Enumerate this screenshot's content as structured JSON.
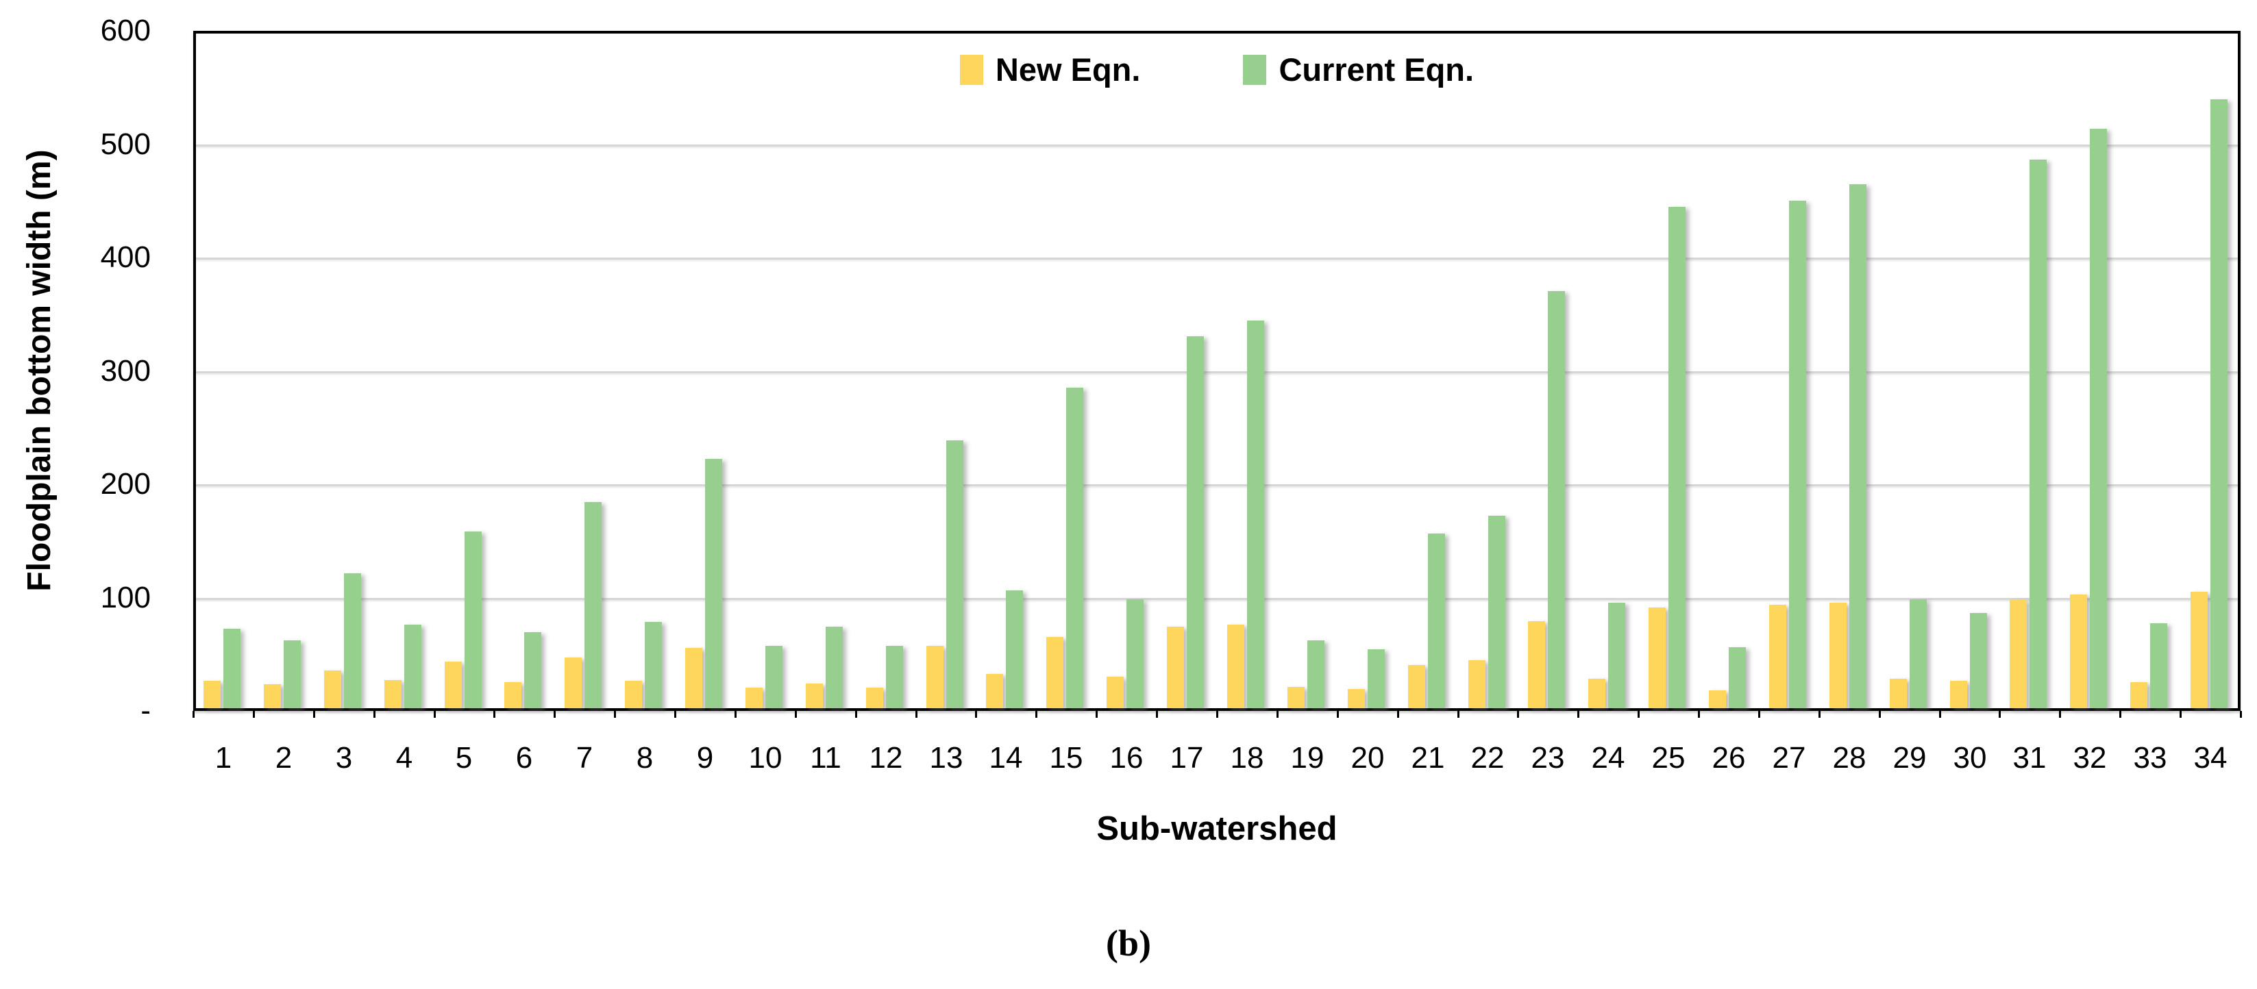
{
  "figure": {
    "y_axis": {
      "title": "Floodplain bottom width (m)",
      "tick_labels": [
        "600",
        "500",
        "400",
        "300",
        "200",
        "100",
        "-"
      ]
    },
    "x_axis": {
      "title": "Sub-watershed"
    },
    "legend": [
      {
        "label": "New Eqn.",
        "color": "#FFD65C"
      },
      {
        "label": "Current Eqn.",
        "color": "#97D08E"
      }
    ],
    "caption": "(b)"
  },
  "chart_data": {
    "type": "bar",
    "title": "",
    "xlabel": "Sub-watershed",
    "ylabel": "Floodplain bottom width (m)",
    "ylim": [
      0,
      600
    ],
    "y_step": 100,
    "grid": true,
    "legend_position": "top-center",
    "axis_color": "#000000",
    "gridline_color": "#d6d6d6",
    "categories": [
      "1",
      "2",
      "3",
      "4",
      "5",
      "6",
      "7",
      "8",
      "9",
      "10",
      "11",
      "12",
      "13",
      "14",
      "15",
      "16",
      "17",
      "18",
      "19",
      "20",
      "21",
      "22",
      "23",
      "24",
      "25",
      "26",
      "27",
      "28",
      "29",
      "30",
      "31",
      "32",
      "33",
      "34"
    ],
    "series": [
      {
        "name": "New Eqn.",
        "color": "#FFD65C",
        "values": [
          24,
          21,
          33,
          25,
          41,
          23,
          45,
          24,
          53,
          18,
          22,
          18,
          55,
          30,
          63,
          28,
          72,
          74,
          19,
          17,
          38,
          42,
          77,
          26,
          89,
          16,
          91,
          93,
          26,
          24,
          96,
          100,
          23,
          103
        ]
      },
      {
        "name": "Current Eqn.",
        "color": "#97D08E",
        "values": [
          70,
          60,
          119,
          74,
          156,
          67,
          182,
          76,
          220,
          55,
          72,
          55,
          236,
          104,
          283,
          96,
          328,
          342,
          60,
          52,
          154,
          170,
          368,
          93,
          442,
          54,
          448,
          462,
          96,
          84,
          484,
          511,
          75,
          537
        ]
      }
    ]
  }
}
